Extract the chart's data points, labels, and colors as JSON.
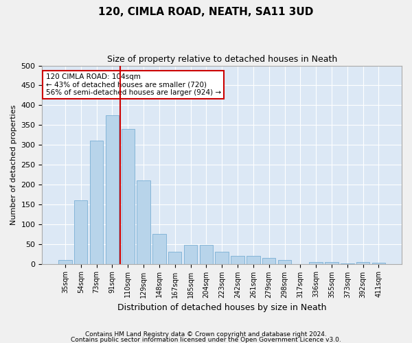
{
  "title": "120, CIMLA ROAD, NEATH, SA11 3UD",
  "subtitle": "Size of property relative to detached houses in Neath",
  "xlabel": "Distribution of detached houses by size in Neath",
  "ylabel": "Number of detached properties",
  "categories": [
    "35sqm",
    "54sqm",
    "73sqm",
    "91sqm",
    "110sqm",
    "129sqm",
    "148sqm",
    "167sqm",
    "185sqm",
    "204sqm",
    "223sqm",
    "242sqm",
    "261sqm",
    "279sqm",
    "298sqm",
    "317sqm",
    "336sqm",
    "355sqm",
    "373sqm",
    "392sqm",
    "411sqm"
  ],
  "values": [
    10,
    160,
    310,
    375,
    340,
    210,
    75,
    30,
    47,
    47,
    30,
    20,
    20,
    15,
    10,
    0,
    5,
    5,
    1,
    5,
    2
  ],
  "bar_color": "#b8d4ea",
  "bar_edge_color": "#7aafd4",
  "background_color": "#dce8f5",
  "grid_color": "#ffffff",
  "vline_x_position": 3.5,
  "vline_color": "#cc0000",
  "annotation_text": "120 CIMLA ROAD: 104sqm\n← 43% of detached houses are smaller (720)\n56% of semi-detached houses are larger (924) →",
  "annotation_box_facecolor": "#ffffff",
  "annotation_box_edgecolor": "#cc0000",
  "ylim": [
    0,
    500
  ],
  "yticks": [
    0,
    50,
    100,
    150,
    200,
    250,
    300,
    350,
    400,
    450,
    500
  ],
  "fig_facecolor": "#f0f0f0",
  "title_fontsize": 11,
  "subtitle_fontsize": 9,
  "ylabel_fontsize": 8,
  "xlabel_fontsize": 9,
  "tick_fontsize": 8,
  "xtick_fontsize": 7,
  "footer1": "Contains HM Land Registry data © Crown copyright and database right 2024.",
  "footer2": "Contains public sector information licensed under the Open Government Licence v3.0."
}
